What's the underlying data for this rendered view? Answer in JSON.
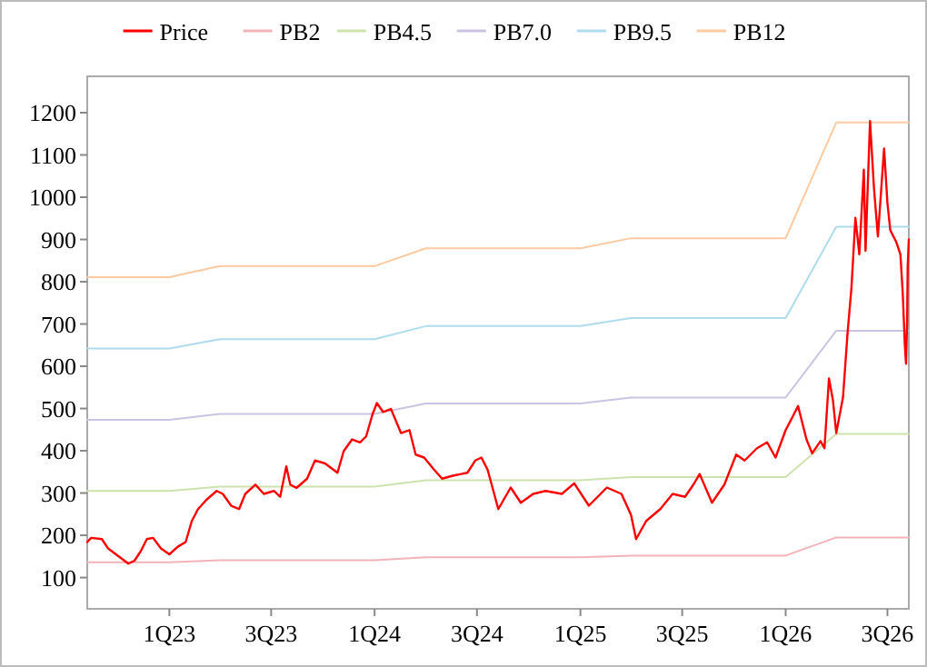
{
  "chart_data": {
    "type": "line",
    "legend": "top",
    "grid": false,
    "marker": "none",
    "line_style": "solid",
    "xlim": [
      "2022-08-08",
      "2026-08-08"
    ],
    "xticks": [
      {
        "value": "2023-01-01",
        "label": "1Q23"
      },
      {
        "value": "2023-07-01",
        "label": "3Q23"
      },
      {
        "value": "2024-01-01",
        "label": "1Q24"
      },
      {
        "value": "2024-07-01",
        "label": "3Q24"
      },
      {
        "value": "2025-01-01",
        "label": "1Q25"
      },
      {
        "value": "2025-07-01",
        "label": "3Q25"
      },
      {
        "value": "2026-01-01",
        "label": "1Q26"
      },
      {
        "value": "2026-07-01",
        "label": "3Q26"
      }
    ],
    "ylim": [
      26,
      1286
    ],
    "yticks": [
      100,
      200,
      300,
      400,
      500,
      600,
      700,
      800,
      900,
      1000,
      1100,
      1200
    ],
    "series": [
      {
        "name": "Price",
        "color": "#ff0000",
        "x": [
          "2022-08-08",
          "2022-08-15",
          "2022-09-03",
          "2022-09-14",
          "2022-10-05",
          "2022-10-20",
          "2022-10-31",
          "2022-11-11",
          "2022-11-22",
          "2022-12-03",
          "2022-12-17",
          "2023-01-01",
          "2023-01-16",
          "2023-01-30",
          "2023-02-10",
          "2023-02-21",
          "2023-03-08",
          "2023-03-26",
          "2023-04-06",
          "2023-04-21",
          "2023-05-05",
          "2023-05-16",
          "2023-06-03",
          "2023-06-18",
          "2023-07-06",
          "2023-07-17",
          "2023-07-28",
          "2023-08-04",
          "2023-08-15",
          "2023-09-03",
          "2023-09-17",
          "2023-10-05",
          "2023-10-27",
          "2023-11-07",
          "2023-11-22",
          "2023-12-06",
          "2023-12-17",
          "2023-12-28",
          "2024-01-05",
          "2024-01-16",
          "2024-01-30",
          "2024-02-17",
          "2024-03-03",
          "2024-03-14",
          "2024-03-29",
          "2024-04-16",
          "2024-04-30",
          "2024-05-19",
          "2024-06-14",
          "2024-06-28",
          "2024-07-09",
          "2024-07-20",
          "2024-08-08",
          "2024-08-30",
          "2024-09-17",
          "2024-10-09",
          "2024-10-31",
          "2024-11-29",
          "2024-12-21",
          "2025-01-16",
          "2025-02-17",
          "2025-03-15",
          "2025-04-01",
          "2025-04-10",
          "2025-04-28",
          "2025-05-23",
          "2025-06-14",
          "2025-07-06",
          "2025-07-21",
          "2025-08-01",
          "2025-08-23",
          "2025-09-14",
          "2025-10-05",
          "2025-10-20",
          "2025-11-11",
          "2025-11-29",
          "2025-12-14",
          "2026-01-01",
          "2026-01-12",
          "2026-01-23",
          "2026-02-07",
          "2026-02-17",
          "2026-03-04",
          "2026-03-11",
          "2026-03-19",
          "2026-03-26",
          "2026-04-01",
          "2026-04-13",
          "2026-04-21",
          "2026-04-28",
          "2026-05-05",
          "2026-05-12",
          "2026-05-20",
          "2026-05-23",
          "2026-05-31",
          "2026-06-07",
          "2026-06-14",
          "2026-06-25",
          "2026-07-01",
          "2026-07-06",
          "2026-07-17",
          "2026-07-24",
          "2026-07-28",
          "2026-08-01",
          "2026-08-03",
          "2026-08-05",
          "2026-08-06",
          "2026-08-08"
        ],
        "values": [
          184,
          194,
          191,
          169,
          148,
          133,
          140,
          162,
          191,
          194,
          169,
          155,
          173,
          184,
          234,
          262,
          284,
          305,
          298,
          270,
          262,
          298,
          320,
          298,
          305,
          291,
          363,
          320,
          312,
          334,
          377,
          370,
          348,
          399,
          427,
          420,
          434,
          485,
          513,
          492,
          499,
          442,
          449,
          391,
          384,
          355,
          334,
          341,
          348,
          377,
          384,
          355,
          262,
          313,
          277,
          298,
          305,
          298,
          323,
          270,
          313,
          298,
          248,
          191,
          234,
          262,
          298,
          291,
          320,
          345,
          277,
          320,
          391,
          377,
          406,
          420,
          384,
          449,
          477,
          506,
          427,
          394,
          423,
          406,
          571,
          520,
          442,
          527,
          678,
          786,
          951,
          865,
          1065,
          873,
          1180,
          1022,
          907,
          1115,
          986,
          922,
          893,
          865,
          778,
          649,
          606,
          707,
          836,
          900
        ]
      },
      {
        "name": "PB2",
        "color": "#f2b3b8",
        "x": [
          "2022-08-08",
          "2023-01-01",
          "2023-04-01",
          "2024-01-01",
          "2024-04-01",
          "2025-01-01",
          "2025-04-01",
          "2026-01-01",
          "2026-04-01",
          "2026-08-08"
        ],
        "values": [
          136,
          136,
          141,
          141,
          148,
          148,
          152,
          152,
          195,
          195
        ]
      },
      {
        "name": "PB4.5",
        "color": "#cde3ad",
        "x": [
          "2022-08-08",
          "2023-01-01",
          "2023-04-01",
          "2024-01-01",
          "2024-04-01",
          "2025-01-01",
          "2025-04-01",
          "2026-01-01",
          "2026-04-01",
          "2026-08-08"
        ],
        "values": [
          305,
          305,
          315,
          315,
          330,
          330,
          338,
          338,
          440,
          440
        ]
      },
      {
        "name": "PB7.0",
        "color": "#cbc3e3",
        "x": [
          "2022-08-08",
          "2023-01-01",
          "2023-04-01",
          "2024-01-01",
          "2024-04-01",
          "2025-01-01",
          "2025-04-01",
          "2026-01-01",
          "2026-04-01",
          "2026-08-08"
        ],
        "values": [
          473,
          473,
          487,
          487,
          512,
          512,
          526,
          526,
          684,
          684
        ]
      },
      {
        "name": "PB9.5",
        "color": "#aedcee",
        "x": [
          "2022-08-08",
          "2023-01-01",
          "2023-04-01",
          "2024-01-01",
          "2024-04-01",
          "2025-01-01",
          "2025-04-01",
          "2026-01-01",
          "2026-04-01",
          "2026-08-08"
        ],
        "values": [
          642,
          642,
          664,
          664,
          695,
          695,
          714,
          714,
          930,
          930
        ]
      },
      {
        "name": "PB12",
        "color": "#fcc9a0",
        "x": [
          "2022-08-08",
          "2023-01-01",
          "2023-04-01",
          "2024-01-01",
          "2024-04-01",
          "2025-01-01",
          "2025-04-01",
          "2026-01-01",
          "2026-04-01",
          "2026-08-08"
        ],
        "values": [
          811,
          811,
          837,
          837,
          879,
          879,
          903,
          903,
          1177,
          1177
        ]
      }
    ]
  }
}
